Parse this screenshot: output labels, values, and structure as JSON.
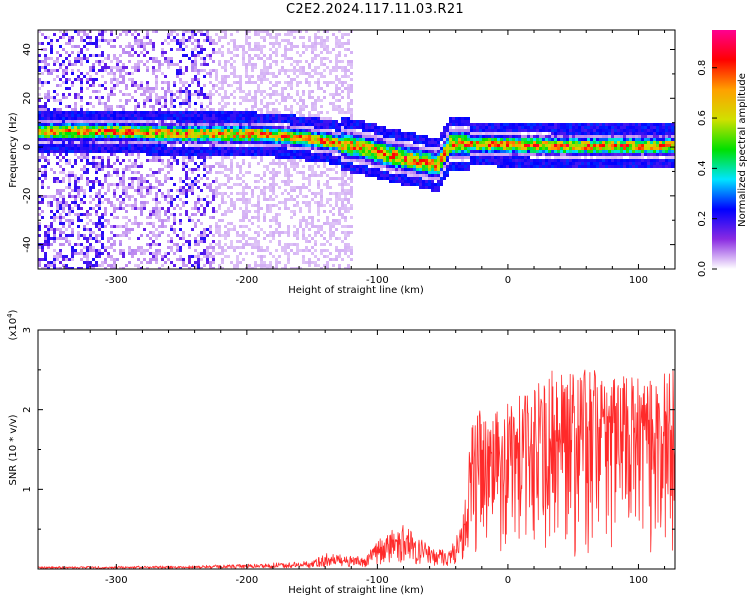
{
  "title": "C2E2.2024.117.11.03.R21",
  "chart_data": [
    {
      "type": "heatmap",
      "name": "spectrogram",
      "xlabel": "Height of straight line (km)",
      "ylabel": "Frequency (Hz)",
      "xlim": [
        -360,
        128
      ],
      "ylim": [
        -50,
        48
      ],
      "xticks": [
        -300,
        -200,
        -100,
        0,
        100
      ],
      "yticks": [
        -40,
        -20,
        0,
        20,
        40
      ],
      "colorbar": {
        "label": "Normalized spectral amplitude",
        "range": [
          0,
          0.95
        ],
        "ticks": [
          0.0,
          0.2,
          0.4,
          0.6,
          0.8
        ],
        "colors": [
          "#ffffff",
          "#8a2be2",
          "#0000ff",
          "#00e5ff",
          "#00e000",
          "#d0e000",
          "#ffa000",
          "#ff0000",
          "#ff0090"
        ]
      },
      "ridge": [
        [
          -360,
          7
        ],
        [
          -300,
          7
        ],
        [
          -250,
          6
        ],
        [
          -200,
          6
        ],
        [
          -170,
          5
        ],
        [
          -140,
          3
        ],
        [
          -110,
          0
        ],
        [
          -90,
          -3
        ],
        [
          -70,
          -5
        ],
        [
          -55,
          -7
        ],
        [
          -45,
          2
        ],
        [
          -35,
          2
        ],
        [
          0,
          1.5
        ],
        [
          50,
          1
        ],
        [
          128,
          1
        ]
      ]
    },
    {
      "type": "line",
      "name": "snr",
      "xlabel": "Height of straight line (km)",
      "ylabel": "SNR (10 * v/v)",
      "yscale_label": "(x10",
      "yscale_exp": "4",
      "xlim": [
        -360,
        128
      ],
      "ylim": [
        0,
        3
      ],
      "xticks": [
        -300,
        -200,
        -100,
        0,
        100
      ],
      "yticks": [
        1,
        2,
        3
      ],
      "color": "#ff2a2a",
      "envelope": [
        [
          -360,
          0.03
        ],
        [
          -250,
          0.04
        ],
        [
          -200,
          0.06
        ],
        [
          -150,
          0.1
        ],
        [
          -140,
          0.2
        ],
        [
          -110,
          0.15
        ],
        [
          -95,
          0.45
        ],
        [
          -80,
          0.55
        ],
        [
          -60,
          0.3
        ],
        [
          -45,
          0.25
        ],
        [
          -35,
          0.55
        ],
        [
          -28,
          2.1
        ],
        [
          -15,
          1.9
        ],
        [
          0,
          2.1
        ],
        [
          20,
          2.3
        ],
        [
          40,
          2.6
        ],
        [
          60,
          2.5
        ],
        [
          80,
          2.5
        ],
        [
          100,
          2.4
        ],
        [
          128,
          2.5
        ]
      ]
    }
  ]
}
